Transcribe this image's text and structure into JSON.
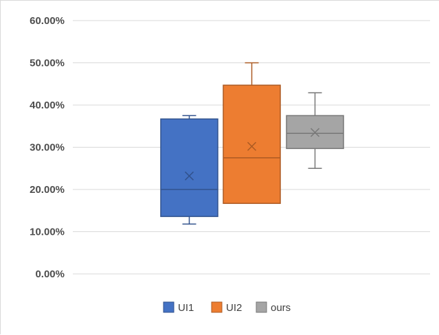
{
  "chart_data": {
    "type": "box",
    "title": "",
    "xlabel": "",
    "ylabel": "",
    "ylim": [
      0,
      0.6
    ],
    "ytick_step": 0.1,
    "ytick_labels": [
      "0.00%",
      "10.00%",
      "20.00%",
      "30.00%",
      "40.00%",
      "50.00%",
      "60.00%"
    ],
    "grid": true,
    "legend_position": "bottom",
    "series": [
      {
        "name": "UI1",
        "color": "#4472c4",
        "min": 0.118,
        "q1": 0.136,
        "median": 0.2,
        "q3": 0.367,
        "max": 0.375,
        "mean": 0.232
      },
      {
        "name": "UI2",
        "color": "#ed7d31",
        "min": 0.167,
        "q1": 0.167,
        "median": 0.275,
        "q3": 0.447,
        "max": 0.5,
        "mean": 0.302
      },
      {
        "name": "ours",
        "color": "#a5a5a5",
        "min": 0.25,
        "q1": 0.297,
        "median": 0.333,
        "q3": 0.375,
        "max": 0.429,
        "mean": 0.335
      }
    ]
  }
}
